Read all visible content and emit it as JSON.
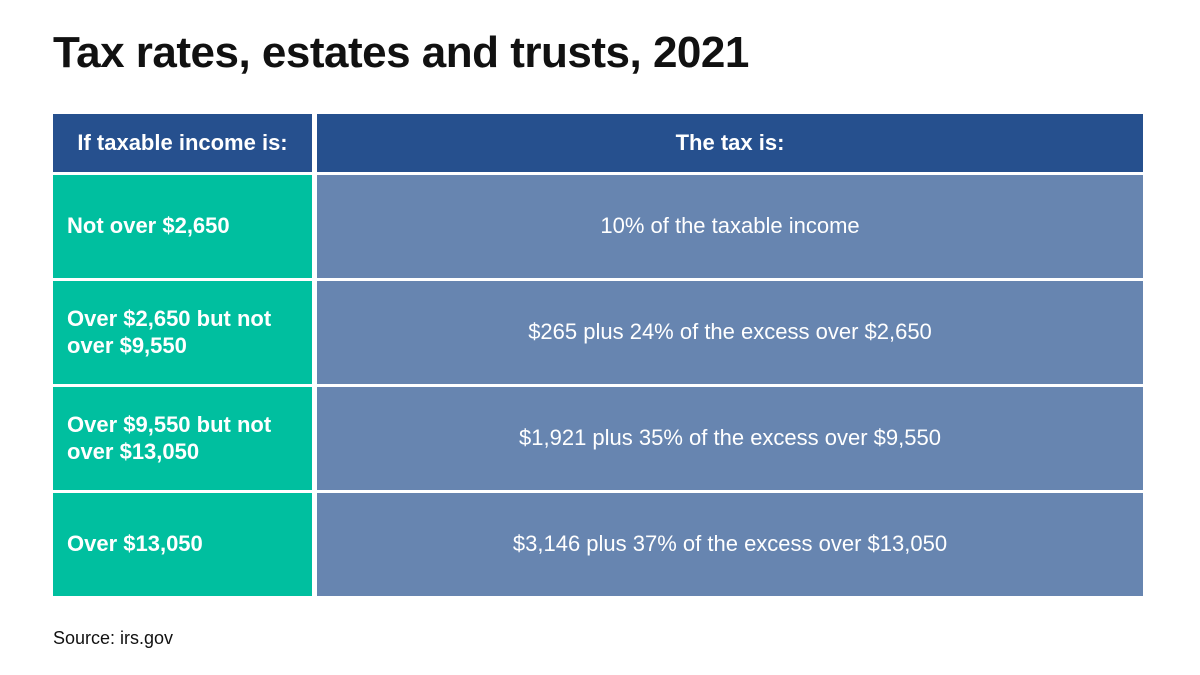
{
  "title": "Tax rates, estates and trusts, 2021",
  "table": {
    "headers": {
      "income": "If taxable income is:",
      "tax": "The tax is:"
    },
    "rows": [
      {
        "income": "Not over $2,650",
        "tax": "10% of the taxable income"
      },
      {
        "income": "Over $2,650 but not over $9,550",
        "tax": "$265 plus 24% of the excess over $2,650"
      },
      {
        "income": "Over $9,550 but not over $13,050",
        "tax": "$1,921 plus 35% of the excess over $9,550"
      },
      {
        "income": "Over $13,050",
        "tax": "$3,146 plus 37% of the excess over $13,050"
      }
    ]
  },
  "source": "Source: irs.gov",
  "colors": {
    "header_bg": "#26508e",
    "income_bg": "#00bf9f",
    "tax_bg": "#6785b0",
    "text_light": "#ffffff",
    "text_dark": "#111111"
  }
}
